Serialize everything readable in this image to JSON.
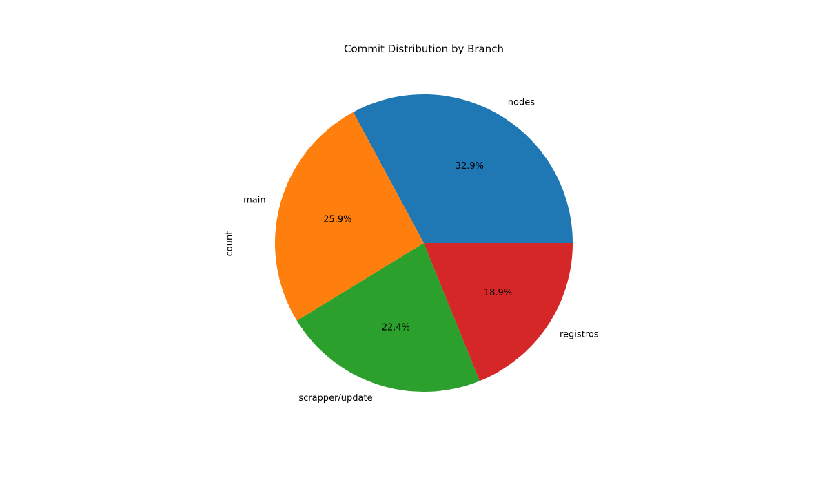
{
  "chart_data": {
    "type": "pie",
    "title": "Commit Distribution by Branch",
    "ylabel": "count",
    "xlabel": "",
    "categories": [
      "nodes",
      "main",
      "scrapper/update",
      "registros"
    ],
    "values": [
      32.9,
      25.9,
      22.4,
      18.9
    ],
    "value_labels": [
      "32.9%",
      "25.9%",
      "22.4%",
      "18.9%"
    ],
    "colors": [
      "#1f77b4",
      "#ff7f0e",
      "#2ca02c",
      "#d62728"
    ],
    "start_angle_deg": 0,
    "direction": "counterclockwise",
    "legend": "none"
  }
}
